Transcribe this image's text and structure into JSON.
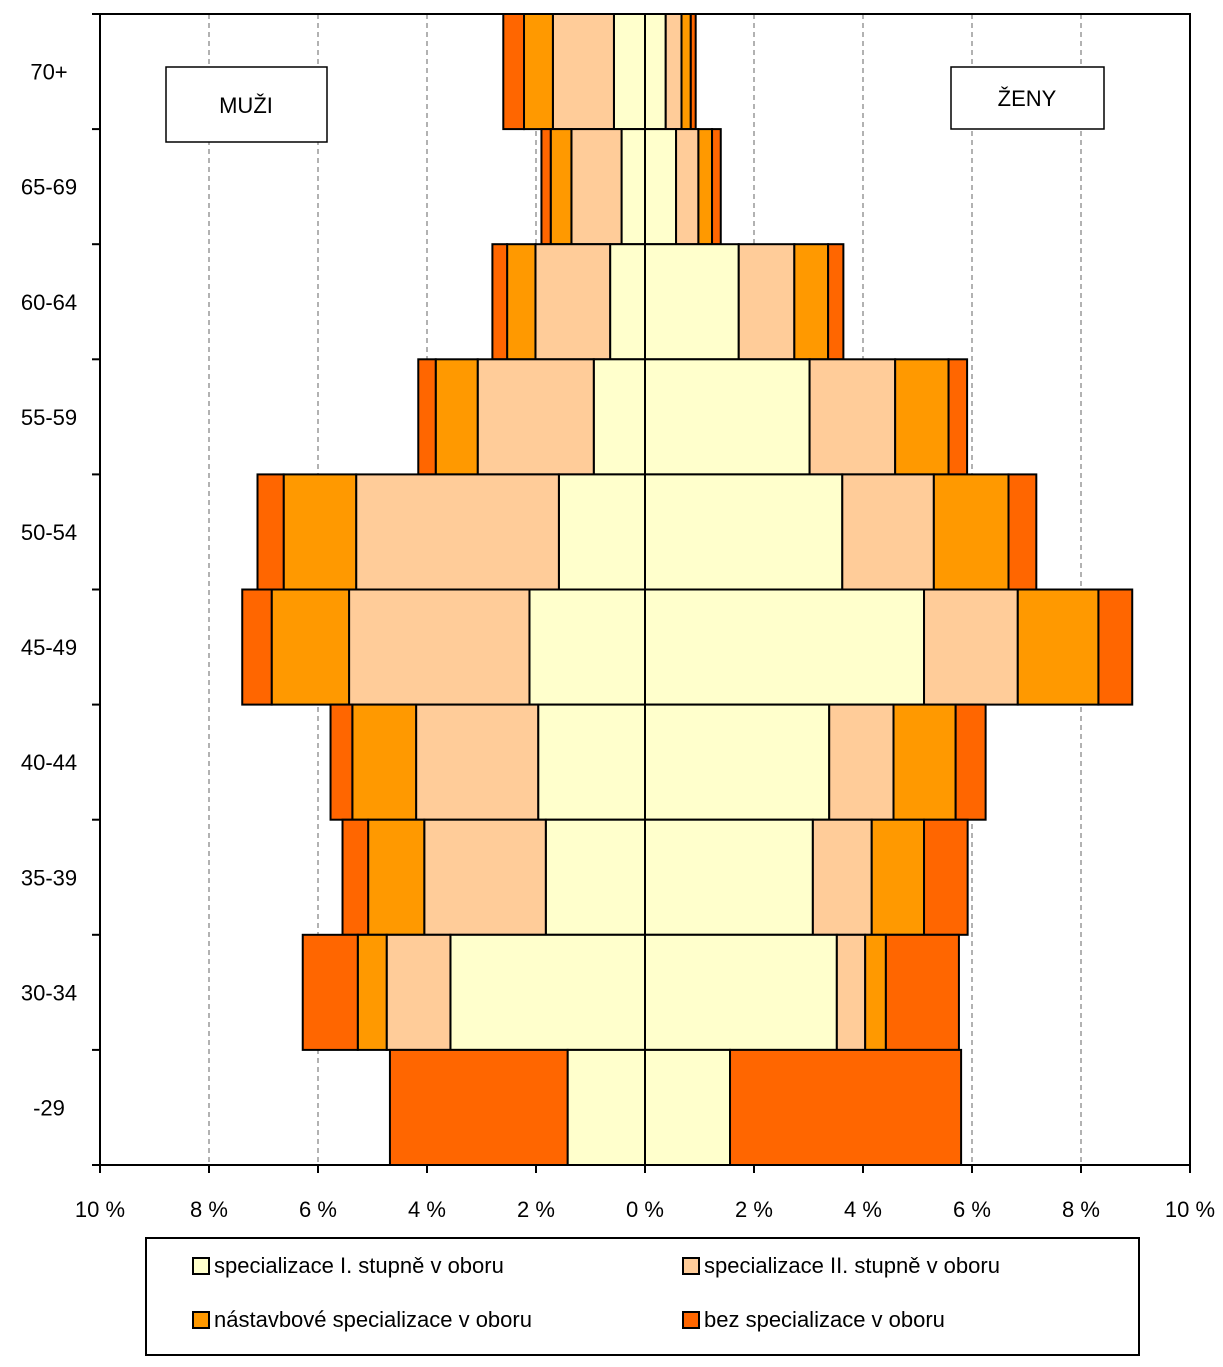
{
  "chart_data": {
    "type": "bar",
    "orientation": "horizontal-population-pyramid",
    "categories": [
      "70+",
      "65-69",
      "60-64",
      "55-59",
      "50-54",
      "45-49",
      "40-44",
      "35-39",
      "30-34",
      "-29"
    ],
    "left_label": "MUŽI",
    "right_label": "ŽENY",
    "x_ticks": [
      "10 %",
      "8 %",
      "6 %",
      "4 %",
      "2 %",
      "0 %",
      "2 %",
      "4 %",
      "6 %",
      "8 %",
      "10 %"
    ],
    "xlim": [
      -10,
      10
    ],
    "grid": "vertical dashed",
    "legend_position": "bottom",
    "series": [
      {
        "name": "specializace I. stupně v oboru",
        "color": "#FFFFCC",
        "men": [
          0.57,
          0.43,
          0.64,
          0.94,
          1.58,
          2.12,
          1.96,
          1.82,
          3.57,
          1.42
        ],
        "women": [
          0.38,
          0.57,
          1.72,
          3.02,
          3.62,
          5.12,
          3.38,
          3.08,
          3.52,
          1.56
        ]
      },
      {
        "name": "specializace II. stupně v oboru",
        "color": "#FFCC99",
        "men": [
          1.12,
          0.92,
          1.37,
          2.13,
          3.72,
          3.31,
          2.24,
          2.23,
          1.17,
          0.0
        ],
        "women": [
          0.29,
          0.41,
          1.02,
          1.57,
          1.68,
          1.72,
          1.18,
          1.08,
          0.52,
          0.0
        ]
      },
      {
        "name": "nástavbové specializace v oboru",
        "color": "#FF9900",
        "men": [
          0.53,
          0.38,
          0.52,
          0.77,
          1.33,
          1.42,
          1.17,
          1.03,
          0.53,
          0.0
        ],
        "women": [
          0.17,
          0.25,
          0.62,
          0.98,
          1.37,
          1.48,
          1.14,
          0.96,
          0.38,
          0.0
        ]
      },
      {
        "name": "bez specializace v oboru",
        "color": "#FF6600",
        "men": [
          0.38,
          0.17,
          0.27,
          0.32,
          0.48,
          0.54,
          0.4,
          0.47,
          1.01,
          3.26
        ],
        "women": [
          0.09,
          0.16,
          0.28,
          0.34,
          0.51,
          0.62,
          0.55,
          0.8,
          1.34,
          4.24
        ]
      }
    ]
  }
}
